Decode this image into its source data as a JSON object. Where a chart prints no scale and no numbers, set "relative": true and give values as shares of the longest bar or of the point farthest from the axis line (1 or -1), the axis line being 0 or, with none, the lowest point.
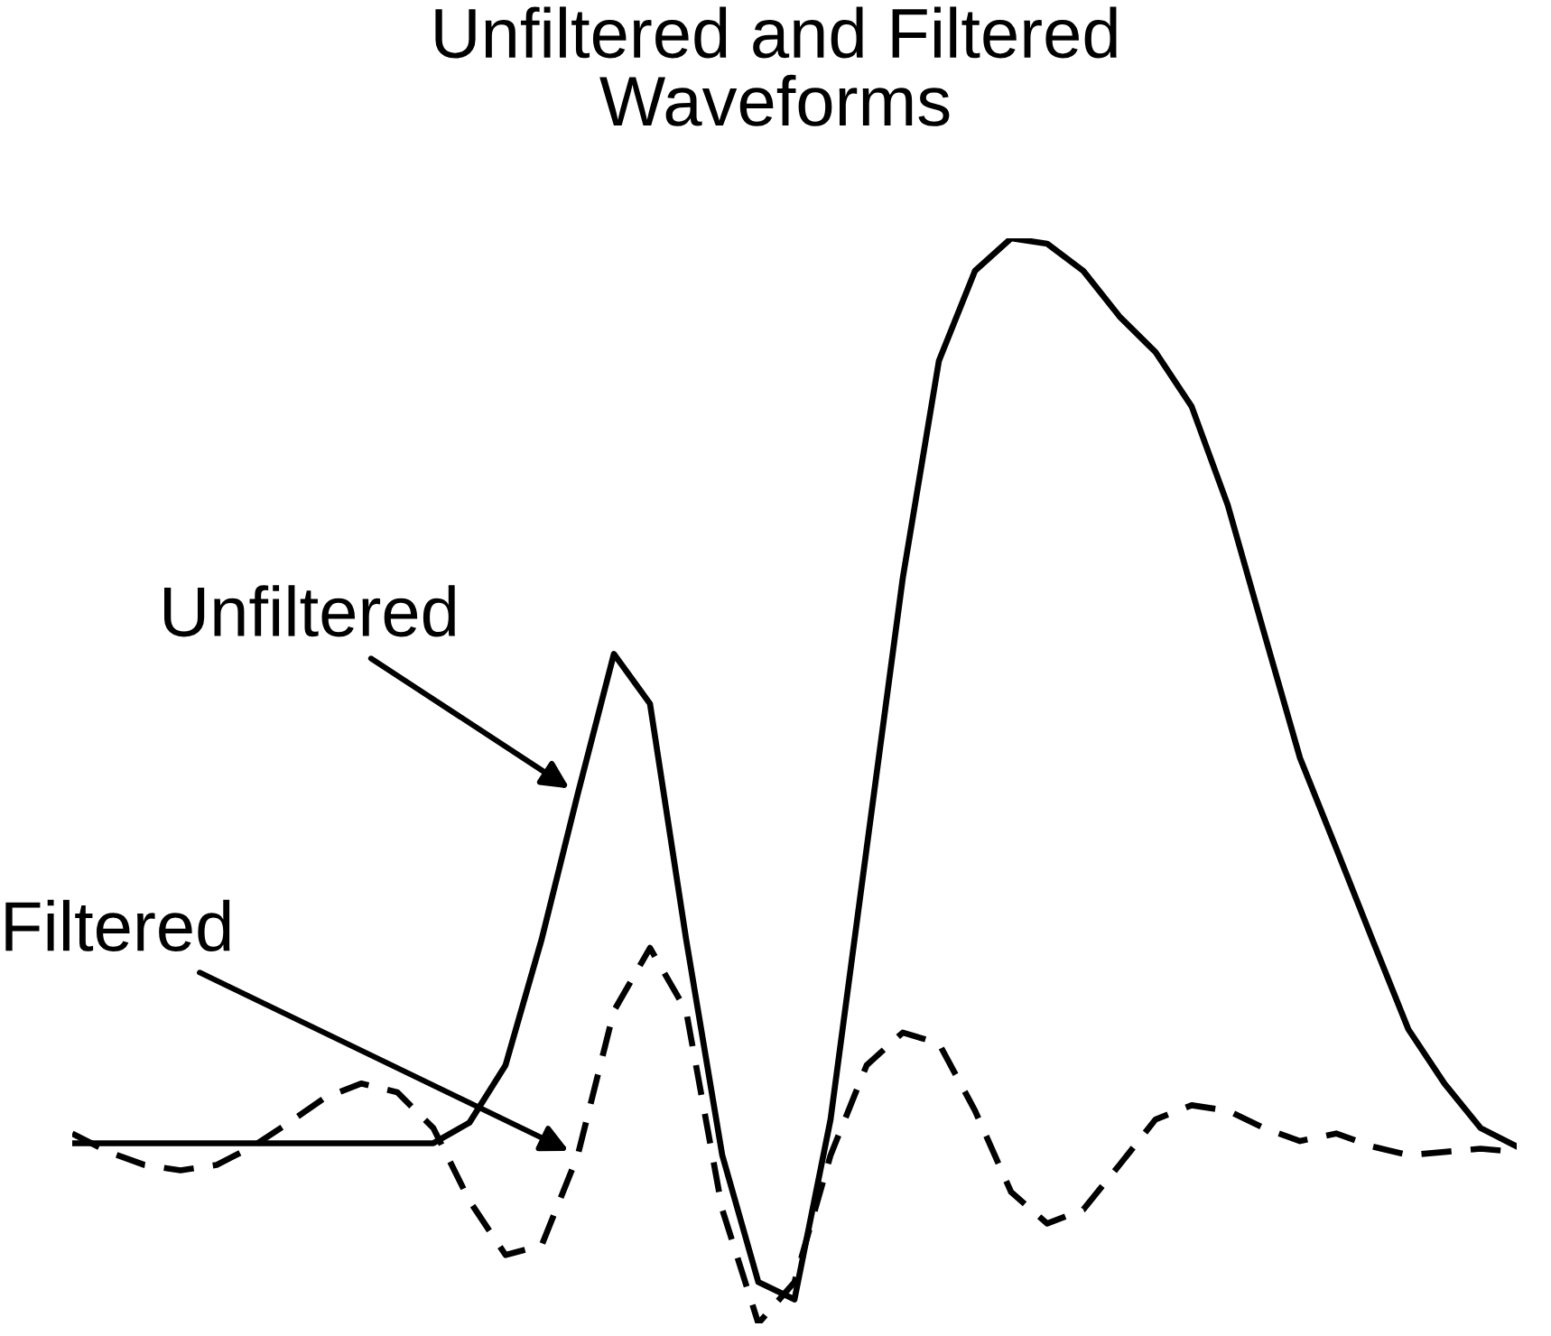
{
  "chart_data": {
    "type": "line",
    "title": "Unfiltered and Filtered\nWaveforms",
    "relative": true,
    "legend": false,
    "categories": [
      null,
      null,
      null,
      null,
      null,
      null,
      null,
      null,
      null,
      null,
      null,
      null,
      null,
      null,
      null,
      null,
      null,
      null,
      null,
      null,
      null,
      null,
      null,
      null,
      null,
      null,
      null,
      null,
      null,
      null,
      null,
      null,
      null,
      null,
      null,
      null,
      null,
      null,
      null,
      null,
      null
    ],
    "series": [
      {
        "name": "Unfiltered",
        "color": "#000000",
        "line_style": "solid",
        "values": [
          0.166,
          0.166,
          0.166,
          0.166,
          0.166,
          0.166,
          0.166,
          0.166,
          0.166,
          0.166,
          0.166,
          0.185,
          0.238,
          0.354,
          0.488,
          0.617,
          0.571,
          0.354,
          0.155,
          0.038,
          0.022,
          0.188,
          0.438,
          0.687,
          0.887,
          0.97,
          1.0,
          0.995,
          0.97,
          0.928,
          0.895,
          0.845,
          0.754,
          0.637,
          0.521,
          0.438,
          0.354,
          0.271,
          0.221,
          0.18,
          0.163
        ]
      },
      {
        "name": "Filtered",
        "color": "#000000",
        "line_style": "dashed",
        "values": [
          0.175,
          0.158,
          0.146,
          0.141,
          0.146,
          0.163,
          0.185,
          0.208,
          0.221,
          0.213,
          0.18,
          0.113,
          0.063,
          0.072,
          0.155,
          0.288,
          0.346,
          0.288,
          0.105,
          0.0,
          0.038,
          0.155,
          0.238,
          0.268,
          0.258,
          0.196,
          0.121,
          0.092,
          0.105,
          0.146,
          0.188,
          0.201,
          0.196,
          0.18,
          0.168,
          0.175,
          0.163,
          0.155,
          0.158,
          0.161,
          0.158
        ]
      }
    ]
  }
}
